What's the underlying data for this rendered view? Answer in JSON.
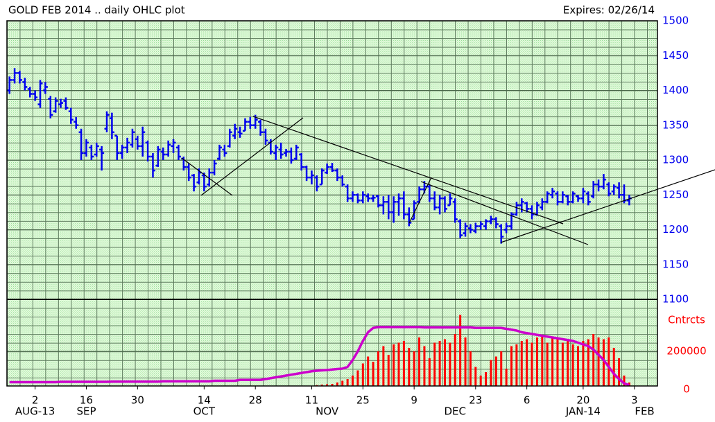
{
  "chart_data": {
    "type": "ohlc",
    "title": "GOLD FEB 2014 .. daily OHLC plot",
    "subtitle": "Expires: 02/26/14",
    "color": "#0000ee",
    "ylim": [
      1100,
      1500
    ],
    "yticks": [
      1100,
      1150,
      1200,
      1250,
      1300,
      1350,
      1400,
      1450,
      1500
    ],
    "grid": true,
    "categories": [
      null,
      null,
      null,
      null,
      null,
      "2",
      null,
      null,
      null,
      null,
      null,
      null,
      null,
      null,
      null,
      "16",
      null,
      null,
      null,
      null,
      null,
      null,
      null,
      null,
      null,
      "30",
      null,
      null,
      null,
      null,
      null,
      null,
      null,
      null,
      null,
      null,
      null,
      null,
      "14",
      null,
      null,
      null,
      null,
      null,
      null,
      null,
      null,
      null,
      "28",
      null,
      null,
      null,
      null,
      null,
      null,
      null,
      null,
      null,
      null,
      "11",
      null,
      null,
      null,
      null,
      null,
      null,
      null,
      null,
      null,
      "25",
      null,
      null,
      null,
      null,
      null,
      null,
      null,
      null,
      null,
      "9",
      null,
      null,
      null,
      null,
      null,
      null,
      null,
      null,
      null,
      null,
      null,
      "23",
      null,
      null,
      null,
      null,
      null,
      null,
      null,
      null,
      null,
      "6",
      null,
      null,
      null,
      null,
      null,
      null,
      null,
      null,
      null,
      null,
      "20",
      null,
      null,
      null,
      null,
      null,
      null,
      null,
      null,
      null,
      "3",
      null,
      null,
      null,
      null
    ],
    "month_labels": [
      null,
      null,
      null,
      null,
      null,
      "AUG-13",
      null,
      null,
      null,
      null,
      null,
      null,
      null,
      null,
      null,
      "SEP",
      null,
      null,
      null,
      null,
      null,
      null,
      null,
      null,
      null,
      null,
      null,
      null,
      null,
      null,
      null,
      null,
      null,
      null,
      null,
      null,
      null,
      null,
      "OCT",
      null,
      null,
      null,
      null,
      null,
      null,
      null,
      null,
      null,
      null,
      null,
      null,
      null,
      null,
      null,
      null,
      null,
      null,
      null,
      null,
      null,
      null,
      null,
      "NOV",
      null,
      null,
      null,
      null,
      null,
      null,
      null,
      null,
      null,
      null,
      null,
      null,
      null,
      null,
      null,
      null,
      null,
      null,
      null,
      null,
      null,
      null,
      null,
      null,
      "DEC",
      null,
      null,
      null,
      null,
      null,
      null,
      null,
      null,
      null,
      null,
      null,
      null,
      null,
      null,
      null,
      null,
      null,
      null,
      null,
      null,
      null,
      null,
      null,
      null,
      "JAN-14",
      null,
      null,
      null,
      null,
      null,
      null,
      null,
      null,
      null,
      null,
      null,
      "FEB",
      null,
      null
    ],
    "open": [
      1400,
      1415,
      1425,
      1412,
      1402,
      1395,
      1380,
      1400,
      1388,
      1370,
      1380,
      1385,
      1370,
      1355,
      1340,
      1310,
      1318,
      1308,
      1315,
      1345,
      1360,
      1335,
      1310,
      1318,
      1322,
      1330,
      1320,
      1325,
      1305,
      1292,
      1312,
      1308,
      1320,
      1318,
      1302,
      1290,
      1278,
      1268,
      1278,
      1265,
      1282,
      1302,
      1315,
      1320,
      1335,
      1340,
      1342,
      1355,
      1350,
      1355,
      1340,
      1325,
      1310,
      1315,
      1310,
      1312,
      1302,
      1308,
      1290,
      1275,
      1275,
      1265,
      1282,
      1290,
      1285,
      1275,
      1262,
      1245,
      1250,
      1242,
      1248,
      1245,
      1248,
      1235,
      1240,
      1225,
      1240,
      1245,
      1222,
      1215,
      1240,
      1258,
      1262,
      1245,
      1232,
      1245,
      1235,
      1240,
      1212,
      1195,
      1202,
      1198,
      1205,
      1205,
      1212,
      1215,
      1205,
      1200,
      1205,
      1222,
      1235,
      1238,
      1230,
      1222,
      1232,
      1240,
      1250,
      1252,
      1240,
      1248,
      1240,
      1248,
      1245,
      1252,
      1248,
      1265,
      1262,
      1265,
      1255,
      1260,
      1250,
      1242,
      null,
      null,
      null,
      null,
      null
    ],
    "high": [
      1420,
      1432,
      1428,
      1418,
      1405,
      1400,
      1415,
      1412,
      1392,
      1390,
      1388,
      1390,
      1375,
      1362,
      1345,
      1330,
      1322,
      1325,
      1320,
      1370,
      1368,
      1335,
      1322,
      1332,
      1345,
      1335,
      1348,
      1328,
      1310,
      1320,
      1318,
      1328,
      1330,
      1322,
      1305,
      1295,
      1280,
      1288,
      1282,
      1288,
      1300,
      1322,
      1322,
      1345,
      1352,
      1348,
      1360,
      1362,
      1365,
      1358,
      1345,
      1330,
      1322,
      1325,
      1316,
      1318,
      1322,
      1310,
      1292,
      1285,
      1278,
      1288,
      1295,
      1296,
      1288,
      1278,
      1265,
      1255,
      1252,
      1255,
      1252,
      1250,
      1250,
      1248,
      1250,
      1248,
      1252,
      1255,
      1232,
      1242,
      1262,
      1270,
      1265,
      1255,
      1250,
      1248,
      1252,
      1245,
      1215,
      1210,
      1208,
      1210,
      1212,
      1215,
      1220,
      1218,
      1208,
      1210,
      1225,
      1240,
      1245,
      1240,
      1235,
      1240,
      1245,
      1255,
      1260,
      1255,
      1255,
      1250,
      1255,
      1250,
      1260,
      1255,
      1270,
      1272,
      1280,
      1268,
      1265,
      1268,
      1265,
      1250,
      null,
      null,
      null,
      null,
      null
    ],
    "low": [
      1395,
      1410,
      1410,
      1400,
      1390,
      1385,
      1375,
      1395,
      1360,
      1368,
      1375,
      1372,
      1352,
      1345,
      1300,
      1305,
      1300,
      1305,
      1285,
      1340,
      1330,
      1300,
      1302,
      1310,
      1318,
      1315,
      1305,
      1298,
      1275,
      1290,
      1300,
      1305,
      1310,
      1300,
      1285,
      1270,
      1255,
      1265,
      1255,
      1262,
      1278,
      1300,
      1305,
      1318,
      1330,
      1332,
      1342,
      1345,
      1345,
      1335,
      1322,
      1308,
      1300,
      1302,
      1305,
      1295,
      1300,
      1285,
      1270,
      1265,
      1255,
      1265,
      1280,
      1283,
      1270,
      1262,
      1240,
      1240,
      1238,
      1238,
      1240,
      1240,
      1232,
      1222,
      1215,
      1210,
      1220,
      1215,
      1205,
      1215,
      1238,
      1252,
      1240,
      1228,
      1222,
      1225,
      1235,
      1210,
      1188,
      1190,
      1195,
      1195,
      1200,
      1200,
      1208,
      1202,
      1180,
      1195,
      1200,
      1220,
      1225,
      1225,
      1215,
      1220,
      1228,
      1238,
      1245,
      1235,
      1238,
      1235,
      1238,
      1240,
      1238,
      1235,
      1245,
      1255,
      1258,
      1248,
      1250,
      1245,
      1238,
      1235,
      null,
      null,
      null,
      null,
      null
    ],
    "close": [
      1415,
      1425,
      1415,
      1405,
      1395,
      1390,
      1410,
      1405,
      1365,
      1385,
      1382,
      1375,
      1358,
      1350,
      1310,
      1325,
      1305,
      1320,
      1310,
      1365,
      1340,
      1310,
      1318,
      1325,
      1340,
      1320,
      1340,
      1305,
      1285,
      1315,
      1308,
      1322,
      1325,
      1305,
      1290,
      1275,
      1262,
      1282,
      1262,
      1282,
      1295,
      1318,
      1310,
      1340,
      1345,
      1338,
      1355,
      1350,
      1358,
      1340,
      1328,
      1312,
      1318,
      1308,
      1312,
      1300,
      1318,
      1290,
      1275,
      1278,
      1262,
      1285,
      1290,
      1285,
      1275,
      1265,
      1245,
      1250,
      1242,
      1250,
      1245,
      1246,
      1235,
      1240,
      1225,
      1240,
      1245,
      1222,
      1210,
      1238,
      1258,
      1262,
      1245,
      1232,
      1245,
      1230,
      1245,
      1215,
      1192,
      1205,
      1200,
      1205,
      1208,
      1212,
      1215,
      1208,
      1190,
      1205,
      1222,
      1235,
      1240,
      1230,
      1222,
      1235,
      1240,
      1252,
      1255,
      1240,
      1250,
      1240,
      1252,
      1245,
      1255,
      1240,
      1265,
      1262,
      1272,
      1252,
      1262,
      1250,
      1242,
      1245,
      null,
      null,
      null,
      null,
      null
    ],
    "volume": {
      "y_label": "Cntrcts",
      "ylim": [
        0,
        500000
      ],
      "yticks": [
        0,
        200000
      ],
      "series": [
        {
          "type": "bar",
          "color": "#ff0000",
          "values": [
            null,
            null,
            null,
            null,
            null,
            null,
            null,
            null,
            null,
            null,
            null,
            null,
            null,
            null,
            null,
            null,
            null,
            null,
            null,
            null,
            null,
            null,
            null,
            null,
            null,
            null,
            null,
            null,
            null,
            null,
            null,
            null,
            null,
            null,
            null,
            null,
            null,
            null,
            null,
            null,
            null,
            null,
            null,
            null,
            null,
            null,
            null,
            null,
            null,
            null,
            null,
            null,
            null,
            null,
            null,
            null,
            null,
            null,
            null,
            null,
            5000,
            8000,
            10000,
            12000,
            20000,
            30000,
            40000,
            60000,
            90000,
            130000,
            170000,
            140000,
            200000,
            230000,
            180000,
            240000,
            250000,
            260000,
            220000,
            200000,
            280000,
            230000,
            160000,
            250000,
            260000,
            270000,
            250000,
            300000,
            410000,
            280000,
            200000,
            110000,
            60000,
            80000,
            150000,
            170000,
            200000,
            100000,
            230000,
            240000,
            260000,
            270000,
            250000,
            280000,
            290000,
            250000,
            280000,
            270000,
            250000,
            260000,
            240000,
            230000,
            260000,
            270000,
            300000,
            280000,
            270000,
            280000,
            220000,
            160000,
            60000,
            20000,
            null,
            null,
            null,
            null,
            null
          ]
        },
        {
          "type": "line",
          "color": "#cc00cc",
          "values": [
            22000,
            22000,
            22000,
            22000,
            22000,
            22000,
            22000,
            22000,
            22000,
            22000,
            24000,
            24000,
            24000,
            24000,
            24000,
            24000,
            24000,
            24000,
            24000,
            24000,
            25000,
            25000,
            25000,
            25000,
            25000,
            25000,
            25000,
            25000,
            25000,
            25000,
            27000,
            27000,
            27000,
            27000,
            27000,
            27000,
            27000,
            27000,
            27000,
            27000,
            30000,
            30000,
            30000,
            30000,
            30000,
            35000,
            35000,
            35000,
            35000,
            35000,
            40000,
            45000,
            50000,
            55000,
            60000,
            65000,
            70000,
            75000,
            80000,
            85000,
            88000,
            90000,
            92000,
            95000,
            98000,
            100000,
            110000,
            150000,
            200000,
            260000,
            310000,
            335000,
            340000,
            340000,
            340000,
            340000,
            340000,
            340000,
            340000,
            340000,
            340000,
            338000,
            338000,
            338000,
            338000,
            338000,
            338000,
            338000,
            338000,
            338000,
            338000,
            335000,
            335000,
            335000,
            335000,
            335000,
            335000,
            330000,
            325000,
            320000,
            310000,
            305000,
            300000,
            295000,
            290000,
            285000,
            280000,
            275000,
            270000,
            265000,
            260000,
            250000,
            240000,
            230000,
            210000,
            180000,
            150000,
            110000,
            70000,
            40000,
            15000,
            5000,
            null,
            null,
            null,
            null,
            null
          ]
        }
      ]
    }
  }
}
